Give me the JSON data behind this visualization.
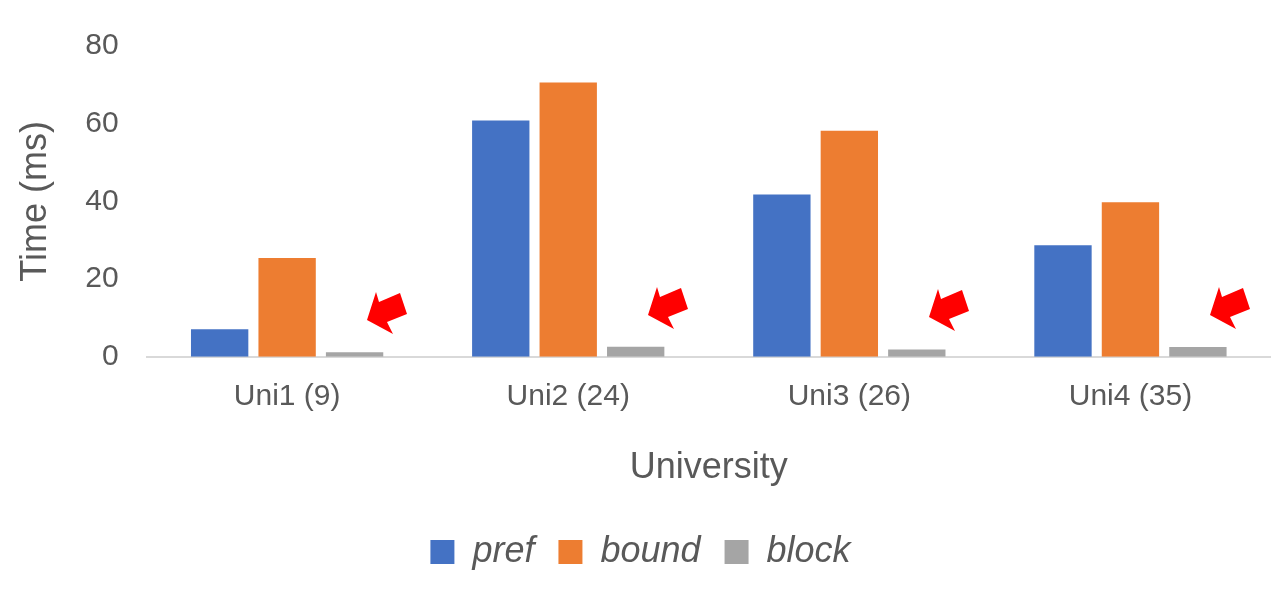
{
  "chart_data": {
    "type": "bar",
    "xlabel": "University",
    "ylabel": "Time (ms)",
    "categories": [
      "Uni1 (9)",
      "Uni2 (24)",
      "Uni3 (26)",
      "Uni4 (35)"
    ],
    "series": [
      {
        "name": "pref",
        "color": "#4472c4",
        "values": [
          7.1,
          60.8,
          41.8,
          28.7
        ]
      },
      {
        "name": "bound",
        "color": "#ed7d31",
        "values": [
          25.4,
          70.6,
          58.2,
          39.8
        ]
      },
      {
        "name": "block",
        "color": "#a5a5a5",
        "values": [
          1.2,
          2.6,
          1.9,
          2.5
        ]
      }
    ],
    "ylim": [
      0,
      80
    ],
    "yticks": [
      0,
      20,
      40,
      60,
      80
    ],
    "grid": false,
    "legend": "bottom"
  }
}
